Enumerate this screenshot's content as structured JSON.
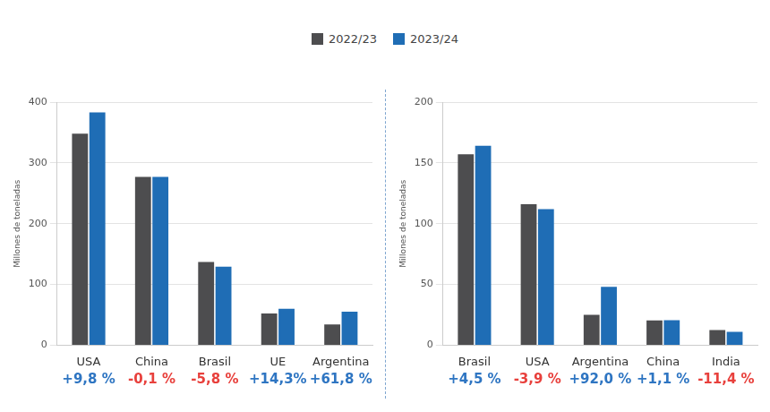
{
  "chart_data": [
    {
      "type": "bar",
      "y_label": "Millones de toneladas",
      "categories": [
        "USA",
        "China",
        "Brasil",
        "UE",
        "Argentina"
      ],
      "series": [
        {
          "name": "2022/23",
          "color": "#4d4d4f",
          "values": [
            348,
            277,
            137,
            52,
            34
          ]
        },
        {
          "name": "2023/24",
          "color": "#1f6db5",
          "values": [
            383,
            277,
            129,
            60,
            55
          ]
        }
      ],
      "ylim": [
        0,
        400
      ],
      "yticks": [
        0,
        100,
        200,
        300,
        400
      ],
      "grid": true,
      "legend": "top",
      "changes": [
        {
          "text": "+9,8 %",
          "color": "#2e75c2"
        },
        {
          "text": "-0,1 %",
          "color": "#e8403c"
        },
        {
          "text": "-5,8 %",
          "color": "#e8403c"
        },
        {
          "text": "+14,3%",
          "color": "#2e75c2"
        },
        {
          "text": "+61,8 %",
          "color": "#2e75c2"
        }
      ]
    },
    {
      "type": "bar",
      "y_label": "Millones de toneladas",
      "categories": [
        "Brasil",
        "USA",
        "Argentina",
        "China",
        "India"
      ],
      "series": [
        {
          "name": "2022/23",
          "color": "#4d4d4f",
          "values": [
            157,
            116,
            25,
            20.3,
            12.4
          ]
        },
        {
          "name": "2023/24",
          "color": "#1f6db5",
          "values": [
            164,
            112,
            48,
            20.5,
            11
          ]
        }
      ],
      "ylim": [
        0,
        200
      ],
      "yticks": [
        0,
        50,
        100,
        150,
        200
      ],
      "grid": true,
      "changes": [
        {
          "text": "+4,5 %",
          "color": "#2e75c2"
        },
        {
          "text": "-3,9 %",
          "color": "#e8403c"
        },
        {
          "text": "+92,0 %",
          "color": "#2e75c2"
        },
        {
          "text": "+1,1 %",
          "color": "#2e75c2"
        },
        {
          "text": "-11,4 %",
          "color": "#e8403c"
        }
      ]
    }
  ]
}
